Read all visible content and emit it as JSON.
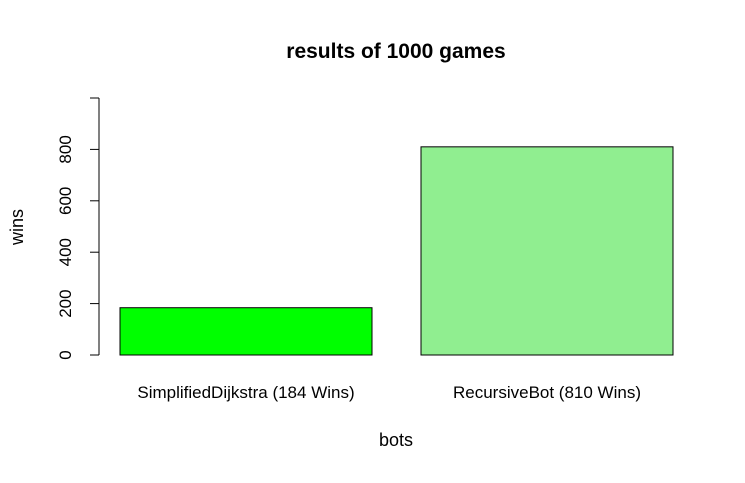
{
  "chart_data": {
    "type": "bar",
    "title": "results of 1000 games",
    "xlabel": "bots",
    "ylabel": "wins",
    "categories": [
      "SimplifiedDijkstra (184 Wins)",
      "RecursiveBot (810 Wins)"
    ],
    "values": [
      184,
      810
    ],
    "colors": [
      "#00ff00",
      "#90ee90"
    ],
    "ylim": [
      0,
      1000
    ],
    "yticks": [
      0,
      200,
      400,
      600,
      800
    ],
    "grid": false,
    "legend": "none"
  }
}
